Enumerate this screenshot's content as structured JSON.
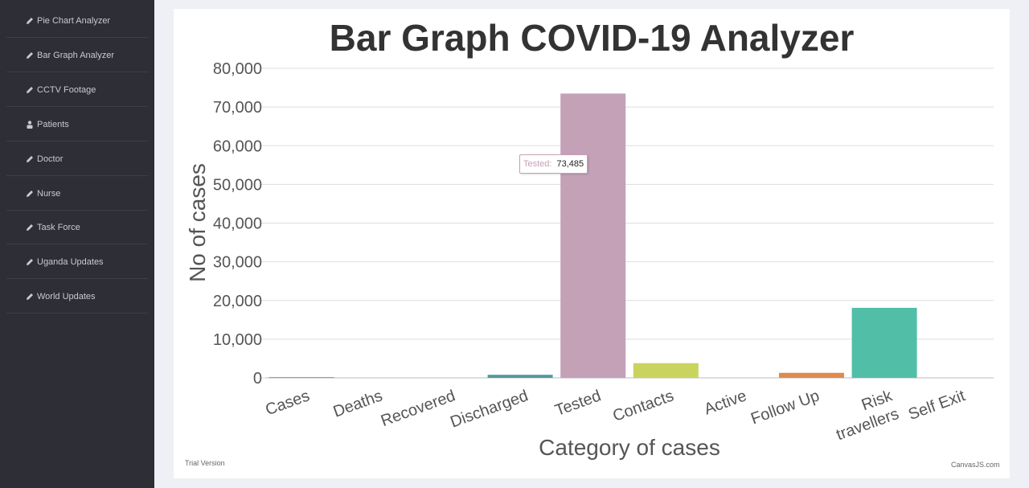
{
  "sidebar": {
    "items": [
      {
        "label": "Pie Chart Analyzer",
        "icon": "pencil-icon"
      },
      {
        "label": "Bar Graph Analyzer",
        "icon": "pencil-icon"
      },
      {
        "label": "CCTV Footage",
        "icon": "pencil-icon"
      },
      {
        "label": "Patients",
        "icon": "patient-icon"
      },
      {
        "label": "Doctor",
        "icon": "pencil-icon"
      },
      {
        "label": "Nurse",
        "icon": "pencil-icon"
      },
      {
        "label": "Task Force",
        "icon": "pencil-icon"
      },
      {
        "label": "Uganda Updates",
        "icon": "pencil-icon"
      },
      {
        "label": "World Updates",
        "icon": "pencil-icon"
      }
    ]
  },
  "chart_data": {
    "type": "bar",
    "title": "Bar Graph COVID-19 Analyzer",
    "xlabel": "Category of cases",
    "ylabel": "No of cases",
    "ylim": [
      0,
      80000
    ],
    "yticks": [
      "0",
      "10,000",
      "20,000",
      "30,000",
      "40,000",
      "50,000",
      "60,000",
      "70,000",
      "80,000"
    ],
    "grid": true,
    "categories": [
      "Cases",
      "Deaths",
      "Recovered",
      "Discharged",
      "Tested",
      "Contacts",
      "Active",
      "Follow Up",
      "Risk travellers",
      "Self Exit"
    ],
    "category_lines": [
      [
        "Cases"
      ],
      [
        "Deaths"
      ],
      [
        "Recovered"
      ],
      [
        "Discharged"
      ],
      [
        "Tested"
      ],
      [
        "Contacts"
      ],
      [
        "Active"
      ],
      [
        "Follow Up"
      ],
      [
        "Risk",
        "travellers"
      ],
      [
        "Self Exit"
      ]
    ],
    "values": [
      200,
      0,
      0,
      800,
      73485,
      3800,
      0,
      1300,
      18100,
      0
    ],
    "colors": [
      "#8d94c1",
      "#6d78ad",
      "#51cda0",
      "#4f9ba0",
      "#c4a1b7",
      "#c8d45d",
      "#df7970",
      "#e08a4d",
      "#51bea8",
      "#61b3c9"
    ],
    "tooltip": {
      "label": "Tested:",
      "value": "73,485"
    }
  },
  "footer": {
    "trial": "Trial Version",
    "credit": "CanvasJS.com"
  }
}
